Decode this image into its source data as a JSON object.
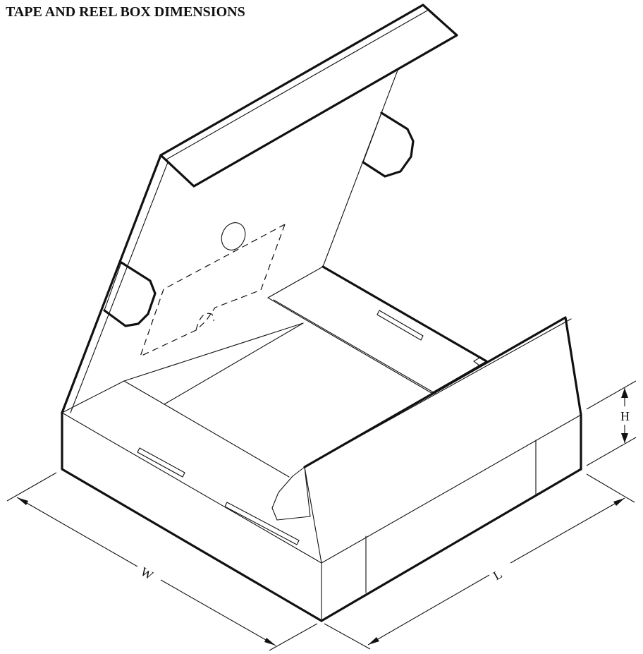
{
  "title": "TAPE AND REEL BOX DIMENSIONS",
  "dimensions": {
    "width_label": "W",
    "length_label": "L",
    "height_label": "H"
  }
}
